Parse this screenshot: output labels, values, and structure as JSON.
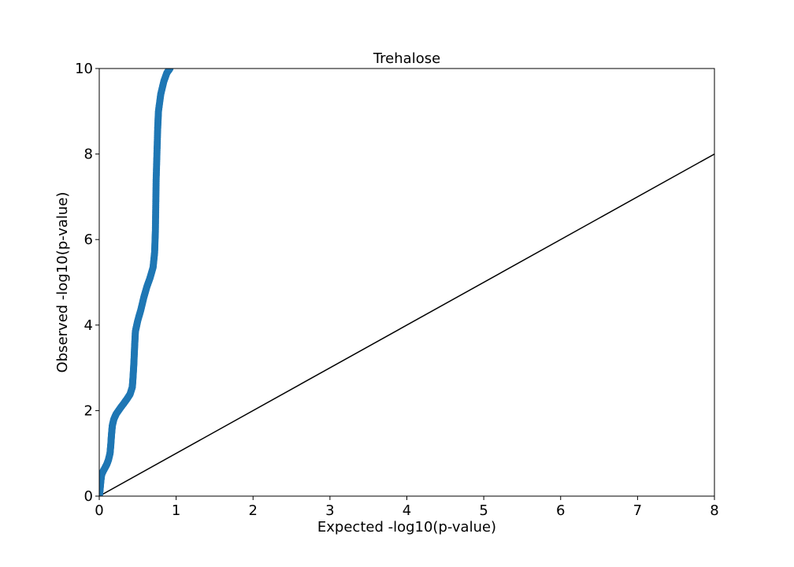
{
  "chart_data": {
    "type": "scatter",
    "title": "Trehalose",
    "xlabel": "Expected -log10(p-value)",
    "ylabel": "Observed -log10(p-value)",
    "xlim": [
      0,
      8
    ],
    "ylim": [
      0,
      10
    ],
    "xticks": [
      "0",
      "1",
      "2",
      "3",
      "4",
      "5",
      "6",
      "7",
      "8"
    ],
    "yticks": [
      "0",
      "2",
      "4",
      "6",
      "8",
      "10"
    ],
    "grid": false,
    "legend": "none",
    "colors": {
      "points": "#1f77b4",
      "reference_line": "#000000",
      "axes": "#000000"
    },
    "series": [
      {
        "values": [
          [
            0.0,
            0.0
          ],
          [
            0.01,
            0.15
          ],
          [
            0.02,
            0.35
          ],
          [
            0.03,
            0.5
          ],
          [
            0.05,
            0.58
          ],
          [
            0.08,
            0.68
          ],
          [
            0.1,
            0.75
          ],
          [
            0.12,
            0.85
          ],
          [
            0.14,
            1.0
          ],
          [
            0.15,
            1.2
          ],
          [
            0.16,
            1.45
          ],
          [
            0.17,
            1.65
          ],
          [
            0.19,
            1.8
          ],
          [
            0.22,
            1.92
          ],
          [
            0.27,
            2.05
          ],
          [
            0.32,
            2.17
          ],
          [
            0.36,
            2.27
          ],
          [
            0.4,
            2.38
          ],
          [
            0.43,
            2.55
          ],
          [
            0.44,
            2.8
          ],
          [
            0.45,
            3.1
          ],
          [
            0.46,
            3.5
          ],
          [
            0.47,
            3.85
          ],
          [
            0.5,
            4.1
          ],
          [
            0.54,
            4.35
          ],
          [
            0.58,
            4.65
          ],
          [
            0.62,
            4.9
          ],
          [
            0.66,
            5.1
          ],
          [
            0.7,
            5.35
          ],
          [
            0.72,
            5.7
          ],
          [
            0.73,
            6.2
          ],
          [
            0.735,
            6.8
          ],
          [
            0.74,
            7.4
          ],
          [
            0.75,
            8.0
          ],
          [
            0.76,
            8.6
          ],
          [
            0.77,
            9.0
          ],
          [
            0.8,
            9.4
          ],
          [
            0.84,
            9.7
          ],
          [
            0.88,
            9.9
          ],
          [
            0.92,
            10.0
          ]
        ]
      }
    ],
    "reference_line": {
      "x": [
        0,
        8
      ],
      "y": [
        0,
        8
      ]
    }
  }
}
